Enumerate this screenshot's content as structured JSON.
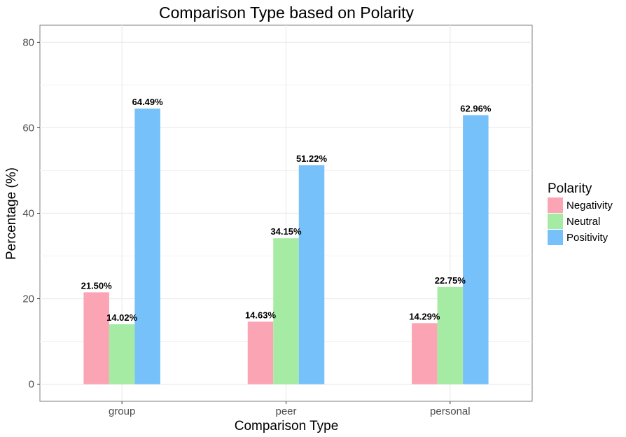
{
  "chart_data": {
    "type": "bar",
    "title": "Comparison Type based on Polarity",
    "xlabel": "Comparison Type",
    "ylabel": "Percentage (%)",
    "categories": [
      "group",
      "peer",
      "personal"
    ],
    "series": [
      {
        "name": "Negativity",
        "color": "#fba5b4",
        "values": [
          21.5,
          14.63,
          14.29
        ],
        "labels": [
          "21.50%",
          "14.63%",
          "14.29%"
        ]
      },
      {
        "name": "Neutral",
        "color": "#a6eba3",
        "values": [
          14.02,
          34.15,
          22.75
        ],
        "labels": [
          "14.02%",
          "34.15%",
          "22.75%"
        ]
      },
      {
        "name": "Positivity",
        "color": "#76c1f9",
        "values": [
          64.49,
          51.22,
          62.96
        ],
        "labels": [
          "64.49%",
          "51.22%",
          "62.96%"
        ]
      }
    ],
    "ylim": [
      -4,
      84
    ],
    "yticks": [
      0,
      20,
      40,
      60,
      80
    ],
    "grid": true,
    "legend": {
      "title": "Polarity",
      "placement": "right"
    }
  }
}
